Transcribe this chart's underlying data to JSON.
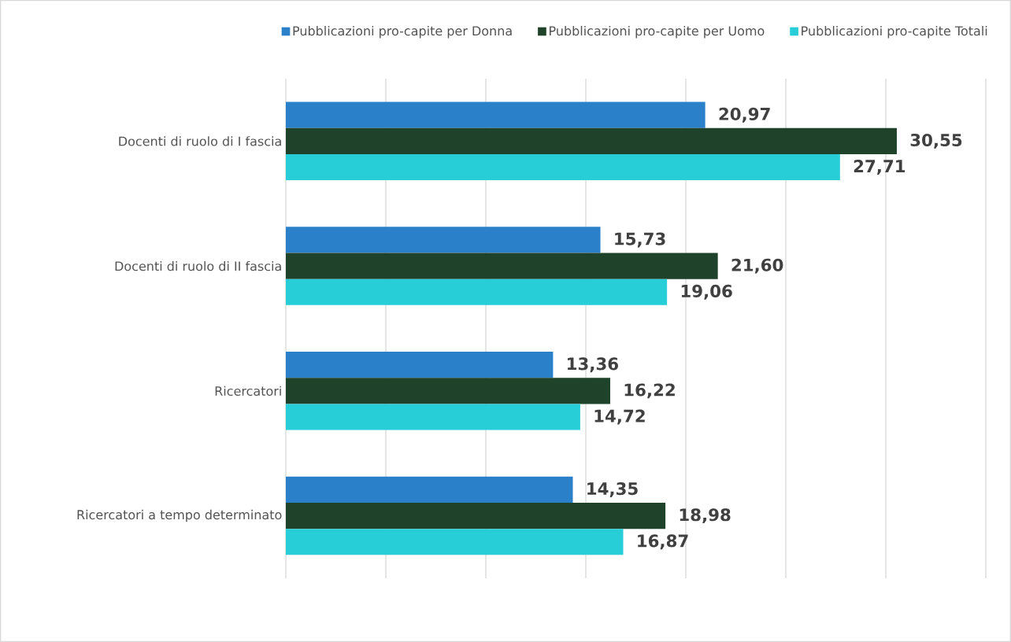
{
  "chart_data": {
    "type": "bar",
    "orientation": "horizontal",
    "categories": [
      "Docenti di ruolo di I fascia",
      "Docenti di ruolo di II fascia",
      "Ricercatori",
      "Ricercatori a tempo determinato"
    ],
    "series": [
      {
        "name": "Pubblicazioni pro-capite per Donna",
        "color": "#2a81c9",
        "values": [
          20.97,
          15.73,
          13.36,
          14.35
        ],
        "value_labels": [
          "20,97",
          "15,73",
          "13,36",
          "14,35"
        ]
      },
      {
        "name": "Pubblicazioni pro-capite per Uomo",
        "color": "#1f422a",
        "values": [
          30.55,
          21.6,
          16.22,
          18.98
        ],
        "value_labels": [
          "30,55",
          "21,60",
          "16,22",
          "18,98"
        ]
      },
      {
        "name": "Pubblicazioni pro-capite Totali",
        "color": "#27ced7",
        "values": [
          27.71,
          19.06,
          14.72,
          16.87
        ],
        "value_labels": [
          "27,71",
          "19,06",
          "14,72",
          "16,87"
        ]
      }
    ],
    "xlim": [
      0,
      35
    ],
    "xticks": [
      0,
      5,
      10,
      15,
      20,
      25,
      30,
      35
    ],
    "grid": "x",
    "legend": "top",
    "tick_labels": "y"
  }
}
